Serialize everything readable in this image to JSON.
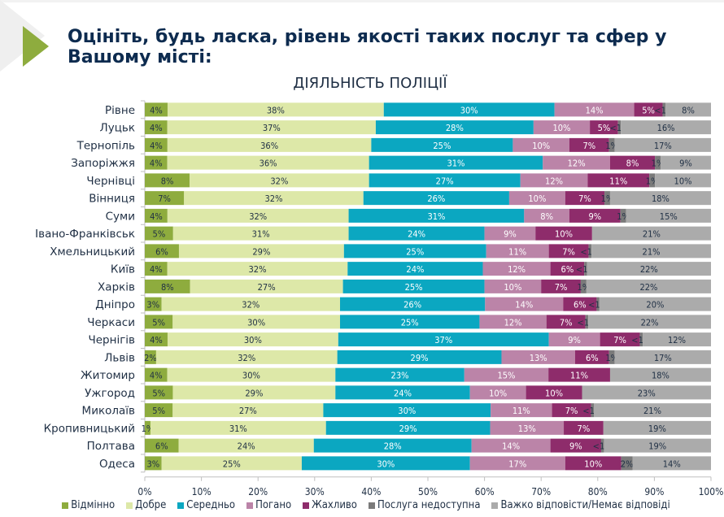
{
  "header": {
    "title": "Оцініть, будь ласка, рівень якості таких послуг та сфер у Вашому місті:"
  },
  "chart_data": {
    "type": "bar",
    "orientation": "horizontal",
    "stacked": true,
    "title": "ДІЯЛЬНІСТЬ ПОЛІЦІЇ",
    "xlabel": "",
    "ylabel": "",
    "xlim": [
      0,
      100
    ],
    "x_ticks": [
      "0%",
      "10%",
      "20%",
      "30%",
      "40%",
      "50%",
      "60%",
      "70%",
      "80%",
      "90%",
      "100%"
    ],
    "legend_position": "bottom",
    "categories": [
      "Рівне",
      "Луцьк",
      "Тернопіль",
      "Запоріжжя",
      "Чернівці",
      "Вінниця",
      "Суми",
      "Івано-Франківськ",
      "Хмельницький",
      "Київ",
      "Харків",
      "Дніпро",
      "Черкаси",
      "Чернігів",
      "Львів",
      "Житомир",
      "Ужгород",
      "Миколаїв",
      "Кропивницький",
      "Полтава",
      "Одеса"
    ],
    "series": [
      {
        "name": "Відмінно",
        "color": "#8eac3e",
        "values": [
          4,
          4,
          4,
          4,
          8,
          7,
          4,
          5,
          6,
          4,
          8,
          3,
          5,
          4,
          2,
          4,
          5,
          5,
          1,
          6,
          3
        ],
        "labels": [
          "4%",
          "4%",
          "4%",
          "4%",
          "8%",
          "7%",
          "4%",
          "5%",
          "6%",
          "4%",
          "8%",
          "3%",
          "5%",
          "4%",
          "2%",
          "4%",
          "5%",
          "5%",
          "1%",
          "6%",
          "3%"
        ]
      },
      {
        "name": "Добре",
        "color": "#dde8a8",
        "values": [
          38,
          37,
          36,
          36,
          32,
          32,
          32,
          31,
          29,
          32,
          27,
          32,
          30,
          30,
          32,
          30,
          29,
          27,
          31,
          24,
          25
        ],
        "labels": [
          "38%",
          "37%",
          "36%",
          "36%",
          "32%",
          "32%",
          "32%",
          "31%",
          "29%",
          "32%",
          "27%",
          "32%",
          "30%",
          "30%",
          "32%",
          "30%",
          "29%",
          "27%",
          "31%",
          "24%",
          "25%"
        ]
      },
      {
        "name": "Середньо",
        "color": "#0ba7c1",
        "values": [
          30,
          28,
          25,
          31,
          27,
          26,
          31,
          24,
          25,
          24,
          25,
          26,
          25,
          37,
          29,
          23,
          24,
          30,
          29,
          28,
          30
        ],
        "labels": [
          "30%",
          "28%",
          "25%",
          "31%",
          "27%",
          "26%",
          "31%",
          "24%",
          "25%",
          "24%",
          "25%",
          "26%",
          "25%",
          "37%",
          "29%",
          "23%",
          "24%",
          "30%",
          "29%",
          "28%",
          "30%"
        ]
      },
      {
        "name": "Погано",
        "color": "#bb84a8",
        "values": [
          14,
          10,
          10,
          12,
          12,
          10,
          8,
          9,
          11,
          12,
          10,
          14,
          12,
          9,
          13,
          15,
          10,
          11,
          13,
          14,
          17
        ],
        "labels": [
          "14%",
          "10%",
          "10%",
          "12%",
          "12%",
          "10%",
          "8%",
          "9%",
          "11%",
          "12%",
          "10%",
          "14%",
          "12%",
          "9%",
          "13%",
          "15%",
          "10%",
          "11%",
          "13%",
          "14%",
          "17%"
        ]
      },
      {
        "name": "Жахливо",
        "color": "#8e2c6b",
        "values": [
          5,
          5,
          7,
          8,
          11,
          7,
          9,
          10,
          7,
          6,
          7,
          6,
          7,
          7,
          6,
          11,
          10,
          7,
          7,
          9,
          10
        ],
        "labels": [
          "5%",
          "5%",
          "7%",
          "8%",
          "11%",
          "7%",
          "9%",
          "10%",
          "7%",
          "6%",
          "7%",
          "6%",
          "7%",
          "7%",
          "6%",
          "11%",
          "10%",
          "7%",
          "7%",
          "9%",
          "10%"
        ]
      },
      {
        "name": "Послуга недоступна",
        "color": "#7a7a7a",
        "values": [
          0.5,
          0.5,
          1,
          1,
          1,
          1,
          1,
          0,
          0.5,
          0.5,
          1,
          0.5,
          0.5,
          0.5,
          1,
          0,
          0,
          0.5,
          0,
          0.5,
          2
        ],
        "labels": [
          "<1%",
          "<1%",
          "1%",
          "1%",
          "1%",
          "1%",
          "1%",
          "",
          "<1%",
          "<1%",
          "1%",
          "<1%",
          "<1%",
          "<1%",
          "1%",
          "",
          "",
          "<1%",
          "",
          "<1%",
          "2%"
        ]
      },
      {
        "name": "Важко відповісти/Немає відповіді",
        "color": "#ababab",
        "values": [
          8,
          16,
          17,
          9,
          10,
          18,
          15,
          21,
          21,
          22,
          22,
          20,
          22,
          12,
          17,
          18,
          23,
          21,
          19,
          19,
          14
        ],
        "labels": [
          "8%",
          "16%",
          "17%",
          "9%",
          "10%",
          "18%",
          "15%",
          "21%",
          "21%",
          "22%",
          "22%",
          "20%",
          "22%",
          "12%",
          "17%",
          "18%",
          "23%",
          "21%",
          "19%",
          "19%",
          "14%"
        ]
      }
    ]
  }
}
